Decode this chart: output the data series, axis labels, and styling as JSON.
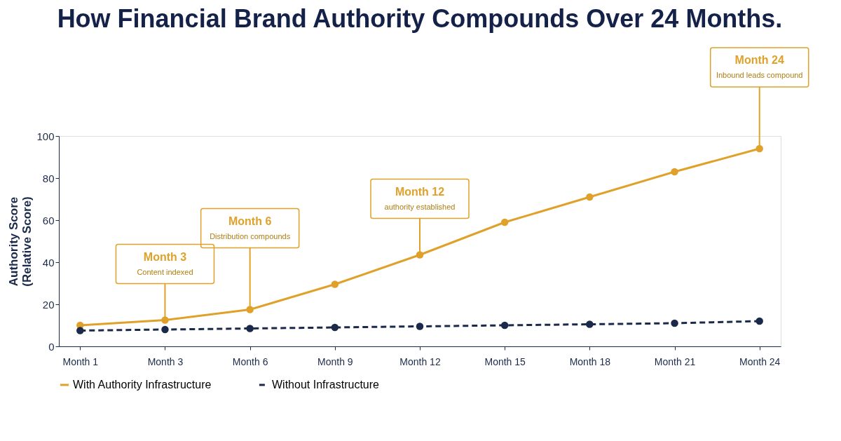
{
  "chart_data": {
    "type": "line",
    "title": "How Financial Brand Authority Compounds Over 24 Months.",
    "ylabel": "Authority Score (Relative Score)",
    "categories": [
      "Month 1",
      "Month 3",
      "Month 6",
      "Month 9",
      "Month 12",
      "Month 15",
      "Month 18",
      "Month 21",
      "Month 24"
    ],
    "series": [
      {
        "name": "With Authority Infrastructure",
        "color": "#e0a12a",
        "line_style": "solid",
        "values": [
          10,
          12.5,
          17.5,
          29.5,
          43.5,
          59,
          71,
          83,
          94
        ]
      },
      {
        "name": "Without Infrastructure",
        "color": "#1b2a4a",
        "line_style": "dashed",
        "values": [
          7.5,
          8,
          8.5,
          9,
          9.5,
          10,
          10.5,
          11,
          12
        ]
      }
    ],
    "ylim": [
      0,
      100
    ],
    "yticks": [
      0,
      20,
      40,
      60,
      80,
      100
    ],
    "grid": false,
    "marker": "circle",
    "legend": "bottom",
    "annotations": [
      "Month 3",
      {
        "text": "Content indexed",
        "x": "Month 3",
        "y": 12.5
      },
      "Month 6",
      {
        "text": "Distribution compounds",
        "x": "Month 6",
        "y": 17.5
      },
      "Month 12",
      {
        "text": "authority established",
        "x": "Month 12",
        "y": 43.5
      },
      "Month 24",
      {
        "text": "Inbound leads compound",
        "x": "Month 24",
        "y": 94
      }
    ]
  }
}
